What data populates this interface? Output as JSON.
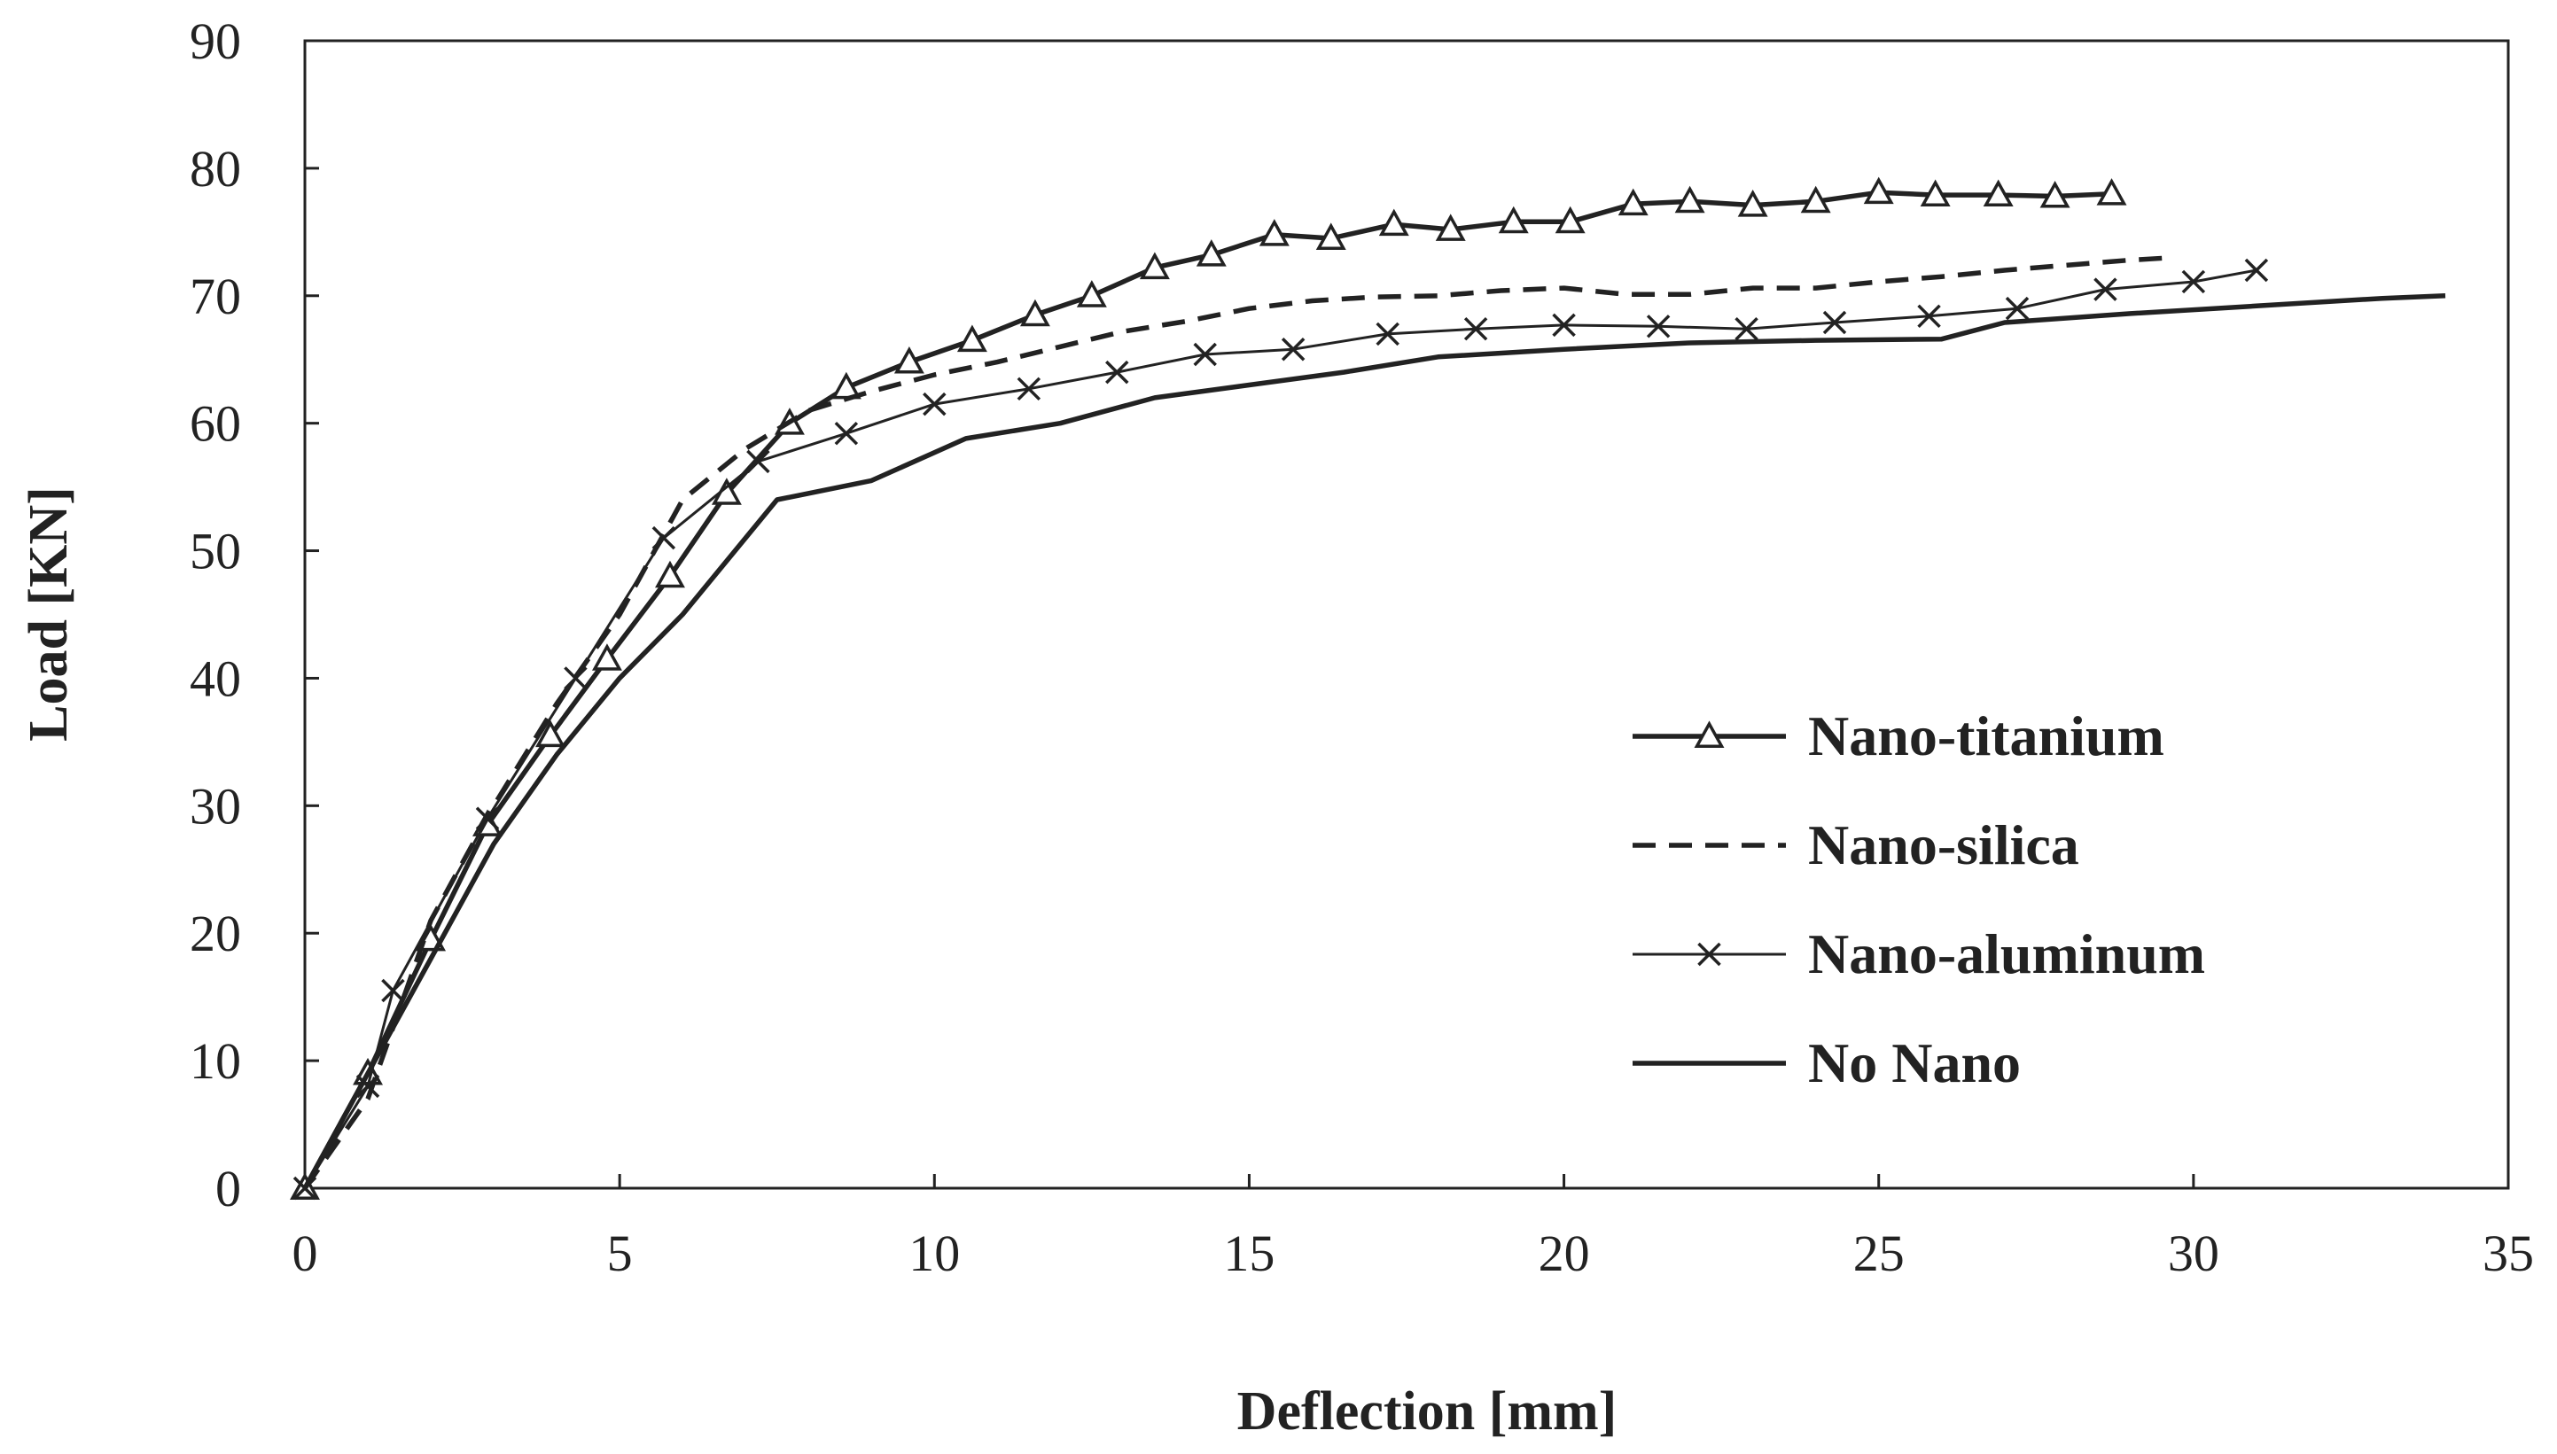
{
  "chart_data": {
    "type": "line",
    "title": "",
    "xlabel": "Deflection [mm]",
    "ylabel": "Load [KN]",
    "xlim": [
      0,
      35
    ],
    "ylim": [
      0,
      90
    ],
    "xticks": [
      0,
      5,
      10,
      15,
      20,
      25,
      30,
      35
    ],
    "yticks": [
      0,
      10,
      20,
      30,
      40,
      50,
      60,
      70,
      80,
      90
    ],
    "grid": false,
    "legend_position": "center-right",
    "series": [
      {
        "name": "Nano-titanium",
        "style": "thick-solid",
        "marker": "triangle",
        "color": "#222222",
        "points": [
          [
            0,
            0
          ],
          [
            1,
            9
          ],
          [
            2,
            19.5
          ],
          [
            2.9,
            28.5
          ],
          [
            3.9,
            35.5
          ],
          [
            4.8,
            41.5
          ],
          [
            5.8,
            48
          ],
          [
            6.7,
            54.5
          ],
          [
            7.7,
            60
          ],
          [
            8.6,
            62.8
          ],
          [
            9.6,
            64.8
          ],
          [
            10.6,
            66.5
          ],
          [
            11.6,
            68.5
          ],
          [
            12.5,
            70
          ],
          [
            13.5,
            72.2
          ],
          [
            14.4,
            73.2
          ],
          [
            15.4,
            74.8
          ],
          [
            16.3,
            74.5
          ],
          [
            17.3,
            75.6
          ],
          [
            18.2,
            75.2
          ],
          [
            19.2,
            75.8
          ],
          [
            20.1,
            75.8
          ],
          [
            21.1,
            77.2
          ],
          [
            22,
            77.4
          ],
          [
            23,
            77.1
          ],
          [
            24,
            77.4
          ],
          [
            25,
            78.1
          ],
          [
            25.9,
            77.9
          ],
          [
            26.9,
            77.9
          ],
          [
            27.8,
            77.8
          ],
          [
            28.7,
            78
          ]
        ]
      },
      {
        "name": "Nano-silica",
        "style": "dashed",
        "marker": "none",
        "color": "#222222",
        "points": [
          [
            0,
            0
          ],
          [
            1,
            7
          ],
          [
            2,
            21
          ],
          [
            3,
            30
          ],
          [
            4,
            38
          ],
          [
            5,
            45
          ],
          [
            6,
            54
          ],
          [
            7,
            58
          ],
          [
            8,
            61
          ],
          [
            9,
            62.5
          ],
          [
            10,
            63.8
          ],
          [
            11,
            64.8
          ],
          [
            12,
            66
          ],
          [
            13,
            67.2
          ],
          [
            14,
            68
          ],
          [
            15,
            69
          ],
          [
            16,
            69.6
          ],
          [
            17,
            69.9
          ],
          [
            18,
            70
          ],
          [
            19,
            70.4
          ],
          [
            20,
            70.6
          ],
          [
            21,
            70.1
          ],
          [
            22,
            70.1
          ],
          [
            23,
            70.6
          ],
          [
            24,
            70.6
          ],
          [
            25,
            71.1
          ],
          [
            26,
            71.5
          ],
          [
            27,
            72
          ],
          [
            28,
            72.4
          ],
          [
            29,
            72.8
          ],
          [
            29.7,
            73
          ]
        ]
      },
      {
        "name": "Nano-aluminum",
        "style": "thin-solid",
        "marker": "x",
        "color": "#222222",
        "points": [
          [
            0,
            0
          ],
          [
            1,
            8
          ],
          [
            1.4,
            15.5
          ],
          [
            2.9,
            29
          ],
          [
            4.3,
            40
          ],
          [
            5.7,
            51
          ],
          [
            7.2,
            57
          ],
          [
            8.6,
            59.2
          ],
          [
            10,
            61.5
          ],
          [
            11.5,
            62.7
          ],
          [
            12.9,
            64
          ],
          [
            14.3,
            65.4
          ],
          [
            15.7,
            65.8
          ],
          [
            17.2,
            67
          ],
          [
            18.6,
            67.4
          ],
          [
            20,
            67.7
          ],
          [
            21.5,
            67.6
          ],
          [
            22.9,
            67.4
          ],
          [
            24.3,
            67.9
          ],
          [
            25.8,
            68.4
          ],
          [
            27.2,
            69
          ],
          [
            28.6,
            70.5
          ],
          [
            30,
            71.1
          ],
          [
            31,
            72
          ]
        ]
      },
      {
        "name": "No Nano",
        "style": "thick-solid",
        "marker": "none",
        "color": "#222222",
        "points": [
          [
            0,
            0
          ],
          [
            1,
            9
          ],
          [
            2,
            18
          ],
          [
            3,
            27
          ],
          [
            4,
            34
          ],
          [
            5,
            40
          ],
          [
            6,
            45
          ],
          [
            7.5,
            54
          ],
          [
            9,
            55.5
          ],
          [
            10.5,
            58.8
          ],
          [
            12,
            60
          ],
          [
            13.5,
            62
          ],
          [
            15,
            63
          ],
          [
            16.5,
            64
          ],
          [
            18,
            65.2
          ],
          [
            20,
            65.8
          ],
          [
            22,
            66.3
          ],
          [
            24,
            66.5
          ],
          [
            26,
            66.6
          ],
          [
            27,
            67.9
          ],
          [
            29,
            68.6
          ],
          [
            31,
            69.2
          ],
          [
            33,
            69.8
          ],
          [
            34,
            70
          ]
        ]
      }
    ]
  }
}
